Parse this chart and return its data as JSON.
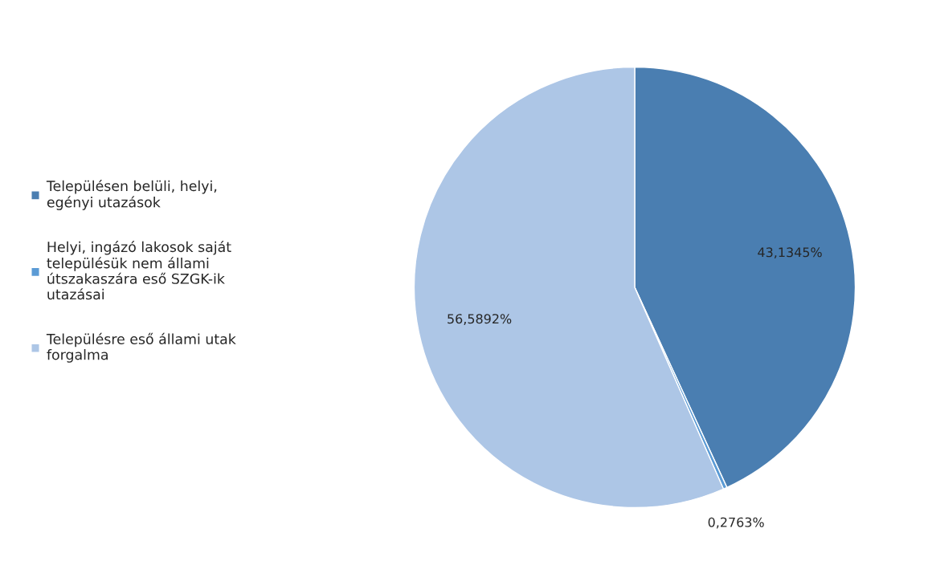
{
  "chart_data": {
    "type": "pie",
    "categories": [
      "Településen belüli, helyi, egényi utazások",
      "Helyi, ingázó lakosok saját településük nem állami útszakaszára eső SZGK-ik utazásai",
      "Településre eső állami utak forgalma"
    ],
    "values": [
      43.1345,
      0.2763,
      56.5892
    ],
    "value_labels": [
      "43,1345%",
      "0,2763%",
      "56,5892%"
    ],
    "colors": [
      "#4a7eb1",
      "#5b9bd5",
      "#adc6e6"
    ],
    "legend": "left"
  }
}
